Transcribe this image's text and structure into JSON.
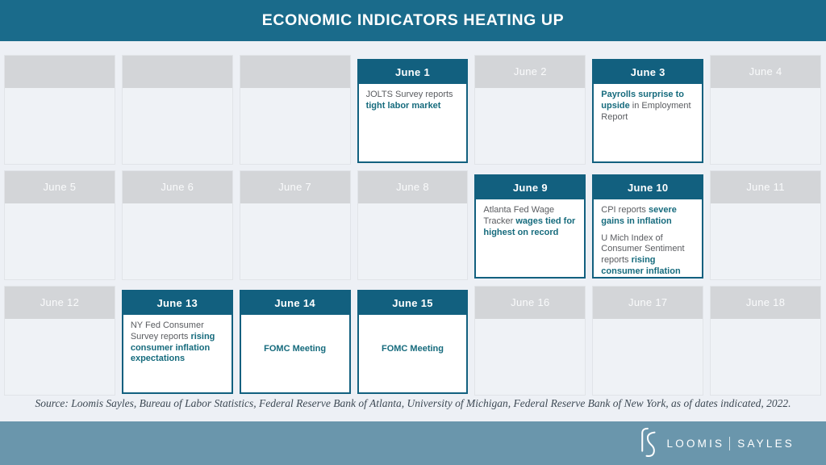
{
  "title": "ECONOMIC INDICATORS HEATING UP",
  "source": "Source: Loomis Sayles, Bureau of Labor Statistics, Federal Reserve Bank of Atlanta, University of Michigan, Federal Reserve Bank of New York, as of dates indicated, 2022.",
  "footer": {
    "logo_icon": "loomis-sayles-ls-monogram",
    "brand_left": "LOOMIS",
    "brand_right": "SAYLES"
  },
  "colors": {
    "title_bar_bg": "#1A6B8B",
    "event_teal": "#12607F",
    "highlight_text": "#166B7D",
    "body_text": "#5A5C60",
    "gray_header_bg": "#D3D5D8",
    "empty_cell_bg": "#EFF2F6",
    "page_bg": "#EDF0F5",
    "footer_bg": "#6A96AC"
  },
  "calendar": {
    "rows": [
      [
        {
          "date": "",
          "highlighted": false
        },
        {
          "date": "",
          "highlighted": false
        },
        {
          "date": "",
          "highlighted": false
        },
        {
          "date": "June 1",
          "highlighted": true,
          "center": false,
          "paragraphs": [
            [
              {
                "t": "JOLTS Survey reports ",
                "b": false
              },
              {
                "t": "tight labor market",
                "b": true
              }
            ]
          ]
        },
        {
          "date": "June 2",
          "highlighted": false
        },
        {
          "date": "June 3",
          "highlighted": true,
          "center": false,
          "paragraphs": [
            [
              {
                "t": "Payrolls surprise to upside",
                "b": true
              },
              {
                "t": " in Employment Report",
                "b": false
              }
            ]
          ]
        },
        {
          "date": "June 4",
          "highlighted": false
        }
      ],
      [
        {
          "date": "June 5",
          "highlighted": false
        },
        {
          "date": "June 6",
          "highlighted": false
        },
        {
          "date": "June 7",
          "highlighted": false
        },
        {
          "date": "June 8",
          "highlighted": false
        },
        {
          "date": "June 9",
          "highlighted": true,
          "center": false,
          "paragraphs": [
            [
              {
                "t": "Atlanta Fed Wage Tracker ",
                "b": false
              },
              {
                "t": "wages tied for highest on record",
                "b": true
              }
            ]
          ]
        },
        {
          "date": "June 10",
          "highlighted": true,
          "center": false,
          "paragraphs": [
            [
              {
                "t": "CPI reports ",
                "b": false
              },
              {
                "t": "severe gains in inflation",
                "b": true
              }
            ],
            [
              {
                "t": "U Mich Index of Consumer Sentiment reports ",
                "b": false
              },
              {
                "t": "rising consumer inflation expectations",
                "b": true
              }
            ]
          ]
        },
        {
          "date": "June 11",
          "highlighted": false
        }
      ],
      [
        {
          "date": "June 12",
          "highlighted": false
        },
        {
          "date": "June 13",
          "highlighted": true,
          "center": false,
          "paragraphs": [
            [
              {
                "t": "NY Fed Consumer Survey reports ",
                "b": false
              },
              {
                "t": "rising consumer inflation expectations",
                "b": true
              }
            ]
          ]
        },
        {
          "date": "June 14",
          "highlighted": true,
          "center": true,
          "paragraphs": [
            [
              {
                "t": "FOMC Meeting",
                "b": true
              }
            ]
          ]
        },
        {
          "date": "June 15",
          "highlighted": true,
          "center": true,
          "paragraphs": [
            [
              {
                "t": "FOMC Meeting",
                "b": true
              }
            ]
          ]
        },
        {
          "date": "June 16",
          "highlighted": false
        },
        {
          "date": "June 17",
          "highlighted": false
        },
        {
          "date": "June 18",
          "highlighted": false
        }
      ]
    ]
  }
}
